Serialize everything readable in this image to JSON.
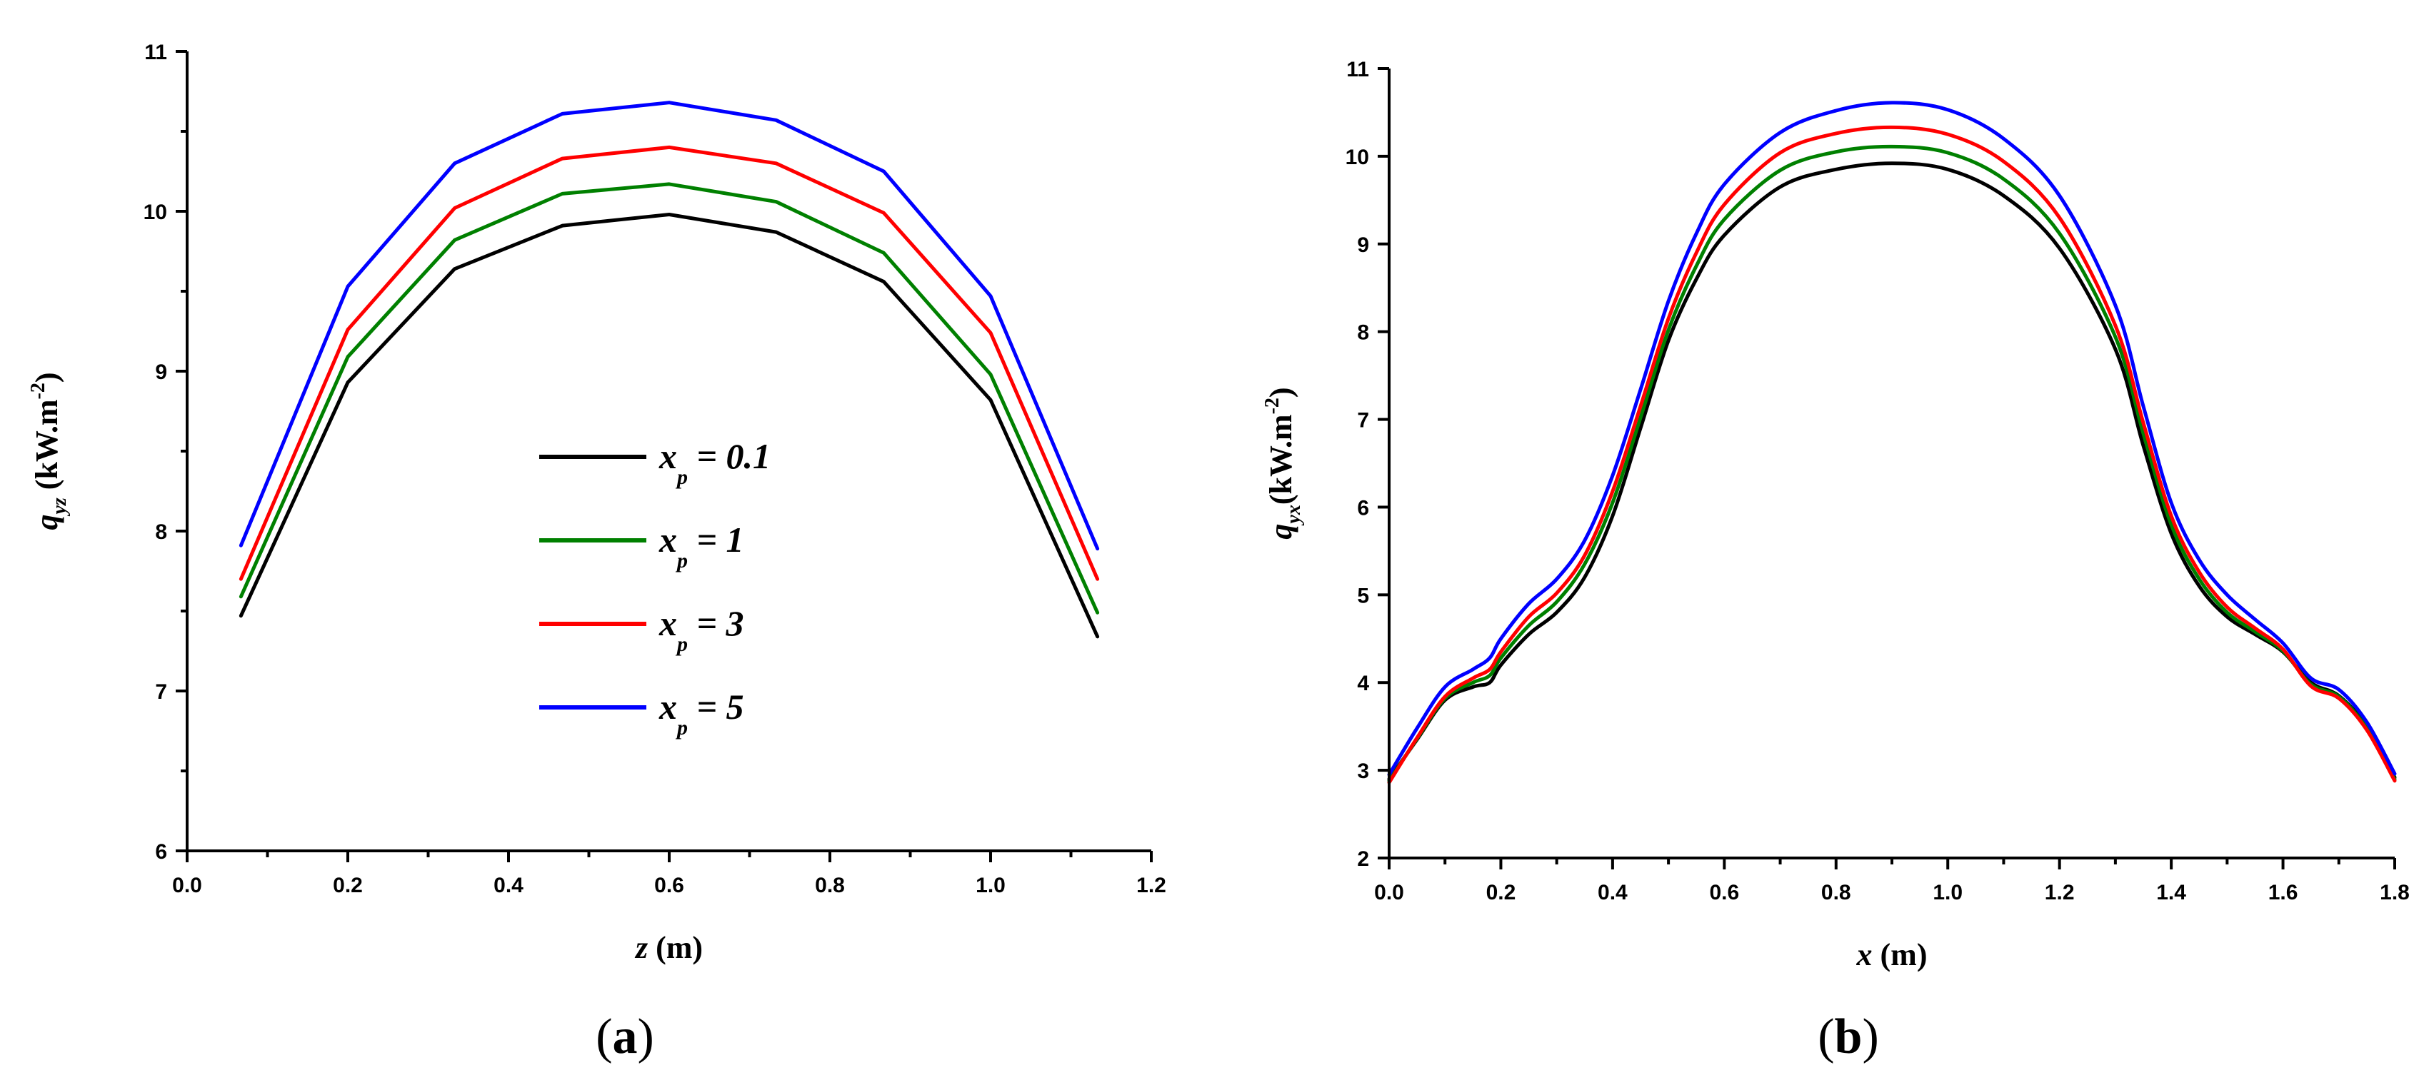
{
  "chart_data": [
    {
      "type": "line",
      "caption": "(a)",
      "caption_letter": "a",
      "xlabel_var": "z",
      "xlabel_unit": " (m)",
      "ylabel_base": "q",
      "ylabel_sub": "yz",
      "ylabel_unit": " (kW.m",
      "ylabel_exp": "-2",
      "ylabel_close": ")",
      "xlim": [
        0.0,
        1.2
      ],
      "ylim": [
        6,
        11
      ],
      "xticks": [
        0.0,
        0.2,
        0.4,
        0.6,
        0.8,
        1.0,
        1.2
      ],
      "xtick_labels": [
        "0.0",
        "0.2",
        "0.4",
        "0.6",
        "0.8",
        "1.0",
        "1.2"
      ],
      "yticks": [
        6,
        7,
        8,
        9,
        10,
        11
      ],
      "ytick_labels": [
        "6",
        "7",
        "8",
        "9",
        "10",
        "11"
      ],
      "legend_position": "center",
      "x": [
        0.067,
        0.2,
        0.333,
        0.467,
        0.6,
        0.733,
        0.867,
        1.0,
        1.133
      ],
      "series": [
        {
          "name": "x_p = 0.1",
          "legend_base": "x",
          "legend_sub": "p",
          "legend_rest": " = 0.1",
          "color": "#000000",
          "values": [
            7.47,
            8.93,
            9.64,
            9.91,
            9.98,
            9.87,
            9.56,
            8.82,
            7.34
          ]
        },
        {
          "name": "x_p = 1",
          "legend_base": "x",
          "legend_sub": "p",
          "legend_rest": " = 1",
          "color": "#008000",
          "values": [
            7.59,
            9.09,
            9.82,
            10.11,
            10.17,
            10.06,
            9.74,
            8.98,
            7.49
          ]
        },
        {
          "name": "x_p = 3",
          "legend_base": "x",
          "legend_sub": "p",
          "legend_rest": " = 3",
          "color": "#ff0000",
          "values": [
            7.7,
            9.26,
            10.02,
            10.33,
            10.4,
            10.3,
            9.99,
            9.24,
            7.7
          ]
        },
        {
          "name": "x_p = 5",
          "legend_base": "x",
          "legend_sub": "p",
          "legend_rest": " = 5",
          "color": "#0000ff",
          "values": [
            7.91,
            9.53,
            10.3,
            10.61,
            10.68,
            10.57,
            10.25,
            9.47,
            7.89
          ]
        }
      ]
    },
    {
      "type": "line",
      "caption": "(b)",
      "caption_letter": "b",
      "xlabel_var": "x",
      "xlabel_unit": " (m)",
      "ylabel_base": "q",
      "ylabel_sub": "yx",
      "ylabel_unit": "(kW.m",
      "ylabel_exp": "-2",
      "ylabel_close": ")",
      "xlim": [
        0.0,
        1.8
      ],
      "ylim": [
        2,
        11
      ],
      "xticks": [
        0.0,
        0.2,
        0.4,
        0.6,
        0.8,
        1.0,
        1.2,
        1.4,
        1.6,
        1.8
      ],
      "xtick_labels": [
        "0.0",
        "0.2",
        "0.4",
        "0.6",
        "0.8",
        "1.0",
        "1.2",
        "1.4",
        "1.6",
        "1.8"
      ],
      "yticks": [
        2,
        3,
        4,
        5,
        6,
        7,
        8,
        9,
        10,
        11
      ],
      "ytick_labels": [
        "2",
        "3",
        "4",
        "5",
        "6",
        "7",
        "8",
        "9",
        "10",
        "11"
      ],
      "x": [
        0.0,
        0.05,
        0.1,
        0.15,
        0.18,
        0.2,
        0.25,
        0.3,
        0.35,
        0.4,
        0.45,
        0.5,
        0.55,
        0.6,
        0.7,
        0.8,
        0.9,
        1.0,
        1.1,
        1.2,
        1.3,
        1.35,
        1.4,
        1.45,
        1.5,
        1.55,
        1.6,
        1.65,
        1.7,
        1.75,
        1.8
      ],
      "series": [
        {
          "name": "x_p = 0.1",
          "color": "#000000",
          "values": [
            2.9,
            3.35,
            3.8,
            3.95,
            4.0,
            4.2,
            4.55,
            4.8,
            5.2,
            5.9,
            6.9,
            7.9,
            8.6,
            9.1,
            9.65,
            9.85,
            9.92,
            9.85,
            9.55,
            8.95,
            7.8,
            6.7,
            5.7,
            5.1,
            4.75,
            4.55,
            4.35,
            4.0,
            3.85,
            3.5,
            2.92
          ]
        },
        {
          "name": "x_p = 1",
          "color": "#008000",
          "values": [
            2.88,
            3.36,
            3.82,
            4.0,
            4.08,
            4.28,
            4.65,
            4.92,
            5.35,
            6.05,
            7.02,
            8.02,
            8.75,
            9.28,
            9.84,
            10.05,
            10.11,
            10.04,
            9.74,
            9.12,
            7.94,
            6.84,
            5.8,
            5.18,
            4.8,
            4.58,
            4.36,
            3.98,
            3.84,
            3.48,
            2.9
          ]
        },
        {
          "name": "x_p = 3",
          "color": "#ff0000",
          "values": [
            2.86,
            3.37,
            3.84,
            4.05,
            4.15,
            4.35,
            4.75,
            5.02,
            5.45,
            6.18,
            7.15,
            8.15,
            8.9,
            9.45,
            10.04,
            10.26,
            10.33,
            10.25,
            9.94,
            9.3,
            8.07,
            6.96,
            5.9,
            5.26,
            4.86,
            4.62,
            4.38,
            3.96,
            3.82,
            3.46,
            2.88
          ]
        },
        {
          "name": "x_p = 5",
          "color": "#0000ff",
          "values": [
            2.95,
            3.48,
            3.95,
            4.15,
            4.28,
            4.5,
            4.9,
            5.18,
            5.62,
            6.36,
            7.34,
            8.35,
            9.12,
            9.68,
            10.27,
            10.52,
            10.61,
            10.53,
            10.2,
            9.55,
            8.3,
            7.15,
            6.05,
            5.4,
            5.0,
            4.72,
            4.45,
            4.05,
            3.92,
            3.55,
            2.96
          ]
        }
      ]
    }
  ]
}
